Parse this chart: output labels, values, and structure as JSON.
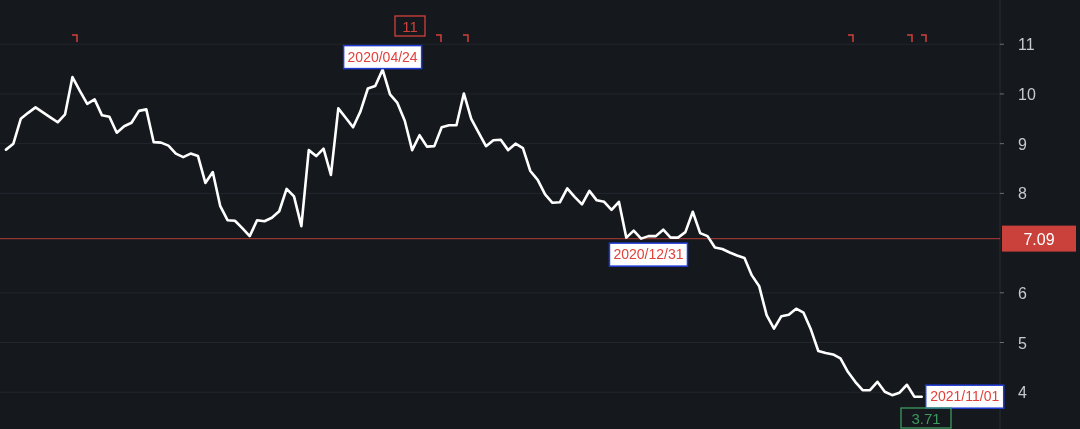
{
  "chart_data": {
    "type": "line",
    "categories": [
      null,
      null,
      null,
      null,
      null,
      null,
      null,
      null,
      null,
      null,
      null,
      null,
      null,
      null,
      null,
      null,
      null,
      null,
      null,
      null,
      null,
      null,
      null,
      null,
      null,
      null,
      null,
      null,
      null,
      null,
      null,
      null,
      null,
      null,
      null,
      null,
      null,
      null,
      null,
      null,
      null,
      null,
      null,
      null,
      null,
      null,
      null,
      null,
      null,
      null,
      null,
      null,
      null,
      null,
      null,
      null,
      null,
      null,
      null,
      null,
      null,
      null,
      null,
      null,
      null,
      null,
      null,
      null,
      null,
      null,
      null,
      null,
      null,
      null,
      null,
      null,
      null,
      null,
      null,
      null,
      null,
      null,
      null,
      null,
      null,
      null,
      null,
      null,
      null,
      null,
      null,
      null,
      null,
      null,
      null,
      null,
      null,
      null,
      null,
      null,
      null,
      null,
      null,
      null,
      null,
      null,
      null,
      null,
      null,
      null,
      null,
      null,
      null,
      null,
      null,
      null,
      null,
      null,
      null,
      null,
      null,
      null,
      null,
      null,
      null
    ],
    "series": [
      {
        "color": "#ffffff",
        "values": [
          8.88,
          9.0,
          9.5,
          9.62,
          9.73,
          9.63,
          9.53,
          9.43,
          9.59,
          10.34,
          10.06,
          9.8,
          9.89,
          9.57,
          9.54,
          9.22,
          9.35,
          9.42,
          9.66,
          9.69,
          9.03,
          9.02,
          8.96,
          8.8,
          8.73,
          8.8,
          8.75,
          8.21,
          8.43,
          7.75,
          7.46,
          7.45,
          7.3,
          7.14,
          7.46,
          7.44,
          7.51,
          7.64,
          8.09,
          7.94,
          7.34,
          8.87,
          8.75,
          8.9,
          8.37,
          9.71,
          9.52,
          9.33,
          9.65,
          10.11,
          10.16,
          10.49,
          9.99,
          9.82,
          9.46,
          8.87,
          9.17,
          8.94,
          8.95,
          9.33,
          9.37,
          9.37,
          10.01,
          9.5,
          9.22,
          8.95,
          9.07,
          9.08,
          8.87,
          9.0,
          8.91,
          8.45,
          8.27,
          7.98,
          7.81,
          7.82,
          8.1,
          7.93,
          7.78,
          8.05,
          7.86,
          7.83,
          7.67,
          7.83,
          7.11,
          7.25,
          7.09,
          7.14,
          7.14,
          7.27,
          7.11,
          7.11,
          7.22,
          7.63,
          7.2,
          7.14,
          6.91,
          6.88,
          6.81,
          6.75,
          6.7,
          6.35,
          6.13,
          5.55,
          5.28,
          5.53,
          5.56,
          5.68,
          5.6,
          5.26,
          4.83,
          4.79,
          4.76,
          4.68,
          4.41,
          4.21,
          4.04,
          4.04,
          4.21,
          4.01,
          3.94,
          3.99,
          4.15,
          3.91,
          3.91
        ],
        "value_labels": [
          null,
          null,
          null,
          null,
          null,
          null,
          null,
          null,
          null,
          null,
          null,
          null,
          null,
          null,
          null,
          null,
          null,
          null,
          null,
          null,
          null,
          null,
          null,
          null,
          null,
          null,
          null,
          null,
          null,
          null,
          null,
          null,
          null,
          null,
          null,
          null,
          null,
          null,
          null,
          null,
          null,
          null,
          null,
          null,
          null,
          null,
          null,
          null,
          null,
          null,
          null,
          "2020/04/24",
          null,
          null,
          null,
          null,
          null,
          null,
          null,
          null,
          null,
          null,
          null,
          null,
          null,
          null,
          null,
          null,
          null,
          null,
          null,
          null,
          null,
          null,
          null,
          null,
          null,
          null,
          null,
          null,
          null,
          null,
          null,
          null,
          null,
          null,
          null,
          "2020/12/31",
          null,
          null,
          null,
          null,
          null,
          null,
          null,
          null,
          null,
          null,
          null,
          null,
          null,
          null,
          null,
          null,
          null,
          null,
          null,
          null,
          null,
          null,
          null,
          null,
          null,
          null,
          null,
          null,
          null,
          null,
          null,
          null,
          null,
          null,
          null,
          null,
          "2021/11/01"
        ]
      }
    ],
    "ylim": [
      3.26,
      11.89
    ],
    "yticks": [
      4,
      5,
      6,
      8,
      9,
      10,
      11
    ],
    "grid": "y",
    "ref_lines": [
      {
        "axis": "y",
        "value": 7.09,
        "label": "7.09",
        "color": "#c9413a"
      }
    ],
    "annotations": [
      "11",
      "3.71"
    ]
  }
}
